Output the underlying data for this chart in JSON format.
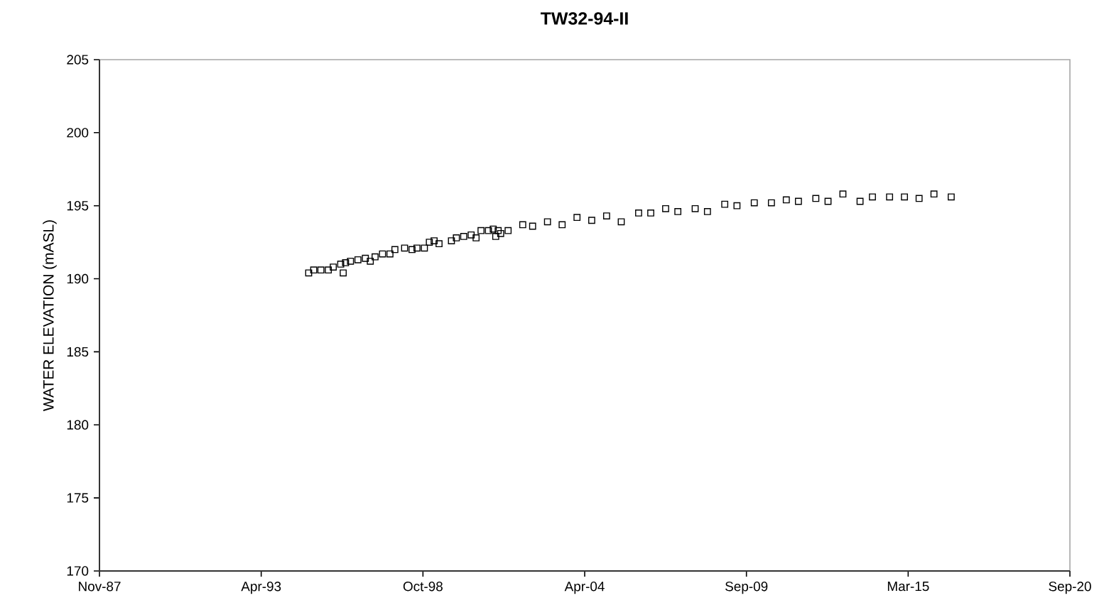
{
  "chart_data": {
    "type": "scatter",
    "title": "TW32-94-II",
    "ylabel": "WATER ELEVATION (mASL)",
    "marker": "square",
    "xlim": [
      "1987-11-01",
      "2020-09-08"
    ],
    "xticks": [
      {
        "value": "1987-11-01",
        "label": "Nov-87"
      },
      {
        "value": "1993-04-23",
        "label": "Apr-93"
      },
      {
        "value": "1998-10-14",
        "label": "Oct-98"
      },
      {
        "value": "2004-04-05",
        "label": "Apr-04"
      },
      {
        "value": "2009-09-26",
        "label": "Sep-09"
      },
      {
        "value": "2015-03-19",
        "label": "Mar-15"
      },
      {
        "value": "2020-09-08",
        "label": "Sep-20"
      }
    ],
    "ylim": [
      170,
      205
    ],
    "yticks": [
      170,
      175,
      180,
      185,
      190,
      195,
      200,
      205
    ],
    "series": [
      {
        "color": "#000000",
        "x": [
          "1994-12",
          "1995-02",
          "1995-05",
          "1995-08",
          "1995-10",
          "1996-01",
          "1996-02",
          "1996-03",
          "1996-05",
          "1996-08",
          "1996-11",
          "1997-01",
          "1997-03",
          "1997-06",
          "1997-09",
          "1997-11",
          "1998-03",
          "1998-06",
          "1998-08",
          "1998-11",
          "1999-01",
          "1999-03",
          "1999-05",
          "1999-10",
          "1999-12",
          "2000-03",
          "2000-06",
          "2000-08",
          "2000-10",
          "2001-01",
          "2001-03",
          "2001-04",
          "2001-05",
          "2001-06",
          "2001-09",
          "2002-03",
          "2002-07",
          "2003-01",
          "2003-07",
          "2004-01",
          "2004-07",
          "2005-01",
          "2005-07",
          "2006-02",
          "2006-07",
          "2007-01",
          "2007-06",
          "2008-01",
          "2008-06",
          "2009-01",
          "2009-06",
          "2010-01",
          "2010-08",
          "2011-02",
          "2011-07",
          "2012-02",
          "2012-07",
          "2013-01",
          "2013-08",
          "2014-01",
          "2014-08",
          "2015-02",
          "2015-08",
          "2016-02",
          "2016-09"
        ],
        "values": [
          190.4,
          190.6,
          190.6,
          190.6,
          190.8,
          191.0,
          190.4,
          191.1,
          191.2,
          191.3,
          191.4,
          191.2,
          191.5,
          191.7,
          191.7,
          192.0,
          192.1,
          192.0,
          192.1,
          192.1,
          192.5,
          192.6,
          192.4,
          192.6,
          192.8,
          192.9,
          193.0,
          192.8,
          193.3,
          193.3,
          193.4,
          192.9,
          193.3,
          193.1,
          193.3,
          193.7,
          193.6,
          193.9,
          193.7,
          194.2,
          194.0,
          194.3,
          193.9,
          194.5,
          194.5,
          194.8,
          194.6,
          194.8,
          194.6,
          195.1,
          195.0,
          195.2,
          195.2,
          195.4,
          195.3,
          195.5,
          195.3,
          195.8,
          195.3,
          195.6,
          195.6,
          195.6,
          195.5,
          195.8,
          195.6
        ]
      }
    ]
  }
}
